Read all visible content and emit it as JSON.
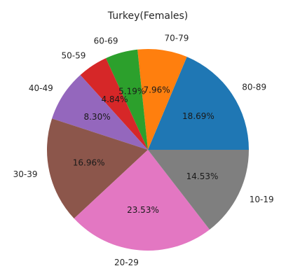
{
  "chart_data": {
    "type": "pie",
    "title": "Turkey(Females)",
    "start_angle_deg": 0,
    "direction": "counterclockwise",
    "label_format": "percent_2dp",
    "slices": [
      {
        "label": "80-89",
        "value": 18.69,
        "pct_text": "18.69%",
        "color": "#1f77b4"
      },
      {
        "label": "70-79",
        "value": 7.96,
        "pct_text": "7.96%",
        "color": "#ff7f0e"
      },
      {
        "label": "60-69",
        "value": 5.19,
        "pct_text": "5.19%",
        "color": "#2ca02c"
      },
      {
        "label": "50-59",
        "value": 4.84,
        "pct_text": "4.84%",
        "color": "#d62728"
      },
      {
        "label": "40-49",
        "value": 8.3,
        "pct_text": "8.30%",
        "color": "#9467bd"
      },
      {
        "label": "30-39",
        "value": 16.96,
        "pct_text": "16.96%",
        "color": "#8c564b"
      },
      {
        "label": "20-29",
        "value": 23.53,
        "pct_text": "23.53%",
        "color": "#e377c2"
      },
      {
        "label": "10-19",
        "value": 14.53,
        "pct_text": "14.53%",
        "color": "#7f7f7f"
      }
    ]
  }
}
